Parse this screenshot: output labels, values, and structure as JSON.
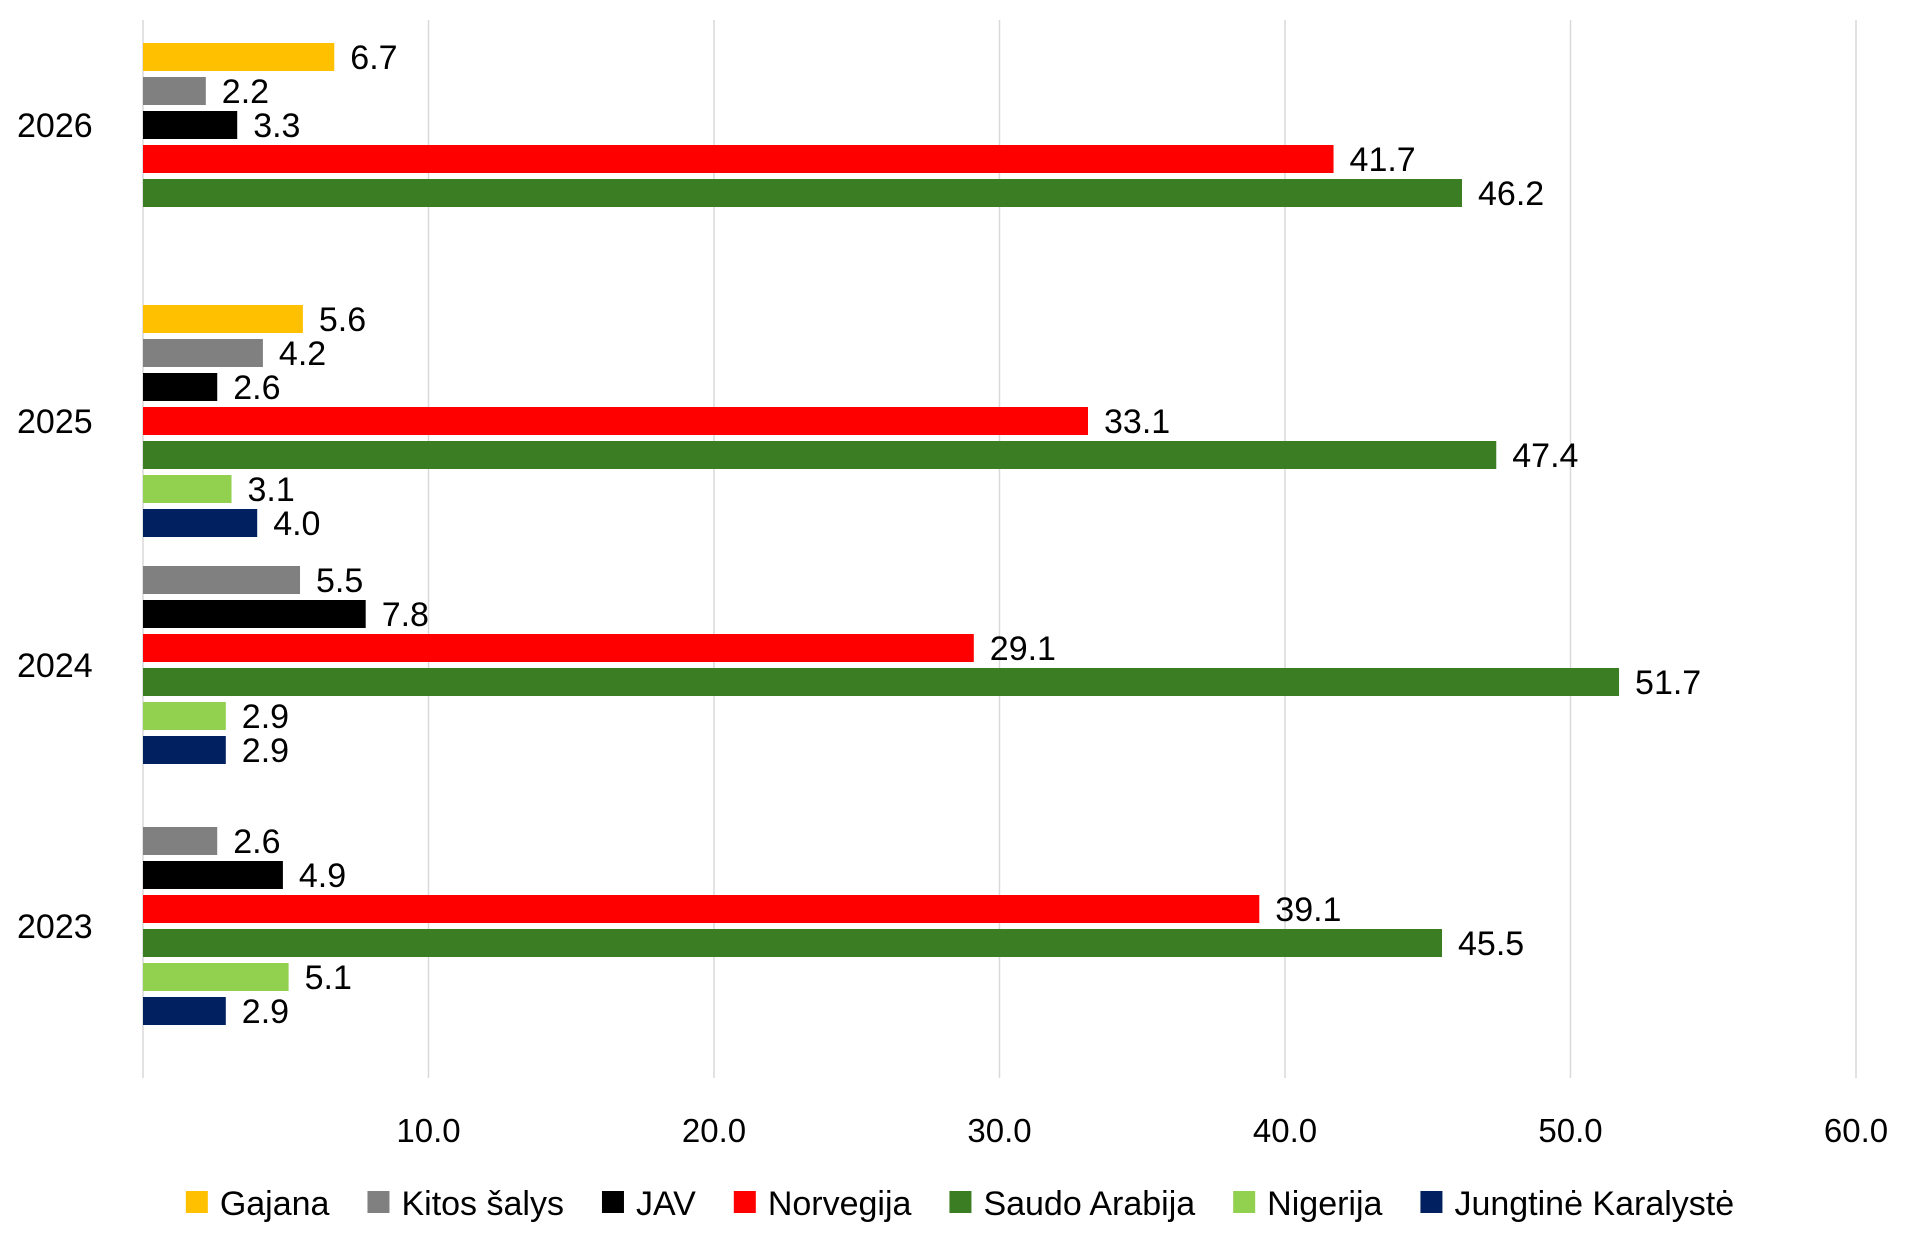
{
  "chart_data": {
    "type": "bar",
    "orientation": "horizontal",
    "title": "",
    "xlabel": "",
    "ylabel": "",
    "xlim": [
      0,
      60
    ],
    "x_ticks": [
      10.0,
      20.0,
      30.0,
      40.0,
      50.0,
      60.0
    ],
    "x_tick_labels": [
      "10.0",
      "20.0",
      "30.0",
      "40.0",
      "50.0",
      "60.0"
    ],
    "grid": "vertical",
    "legend_position": "bottom",
    "categories": [
      "2026",
      "2025",
      "2024",
      "2023"
    ],
    "series": [
      {
        "name": "Gajana",
        "color": "#FFC000",
        "values": [
          6.7,
          5.6,
          null,
          null
        ],
        "labels": [
          "6.7",
          "5.6",
          "",
          ""
        ]
      },
      {
        "name": "Kitos šalys",
        "color": "#808080",
        "values": [
          2.2,
          4.2,
          5.5,
          2.6
        ],
        "labels": [
          "2.2",
          "4.2",
          "5.5",
          "2.6"
        ]
      },
      {
        "name": "JAV",
        "color": "#000000",
        "values": [
          3.3,
          2.6,
          7.8,
          4.9
        ],
        "labels": [
          "3.3",
          "2.6",
          "7.8",
          "4.9"
        ]
      },
      {
        "name": "Norvegija",
        "color": "#FF0000",
        "values": [
          41.7,
          33.1,
          29.1,
          39.1
        ],
        "labels": [
          "41.7",
          "33.1",
          "29.1",
          "39.1"
        ]
      },
      {
        "name": "Saudo Arabija",
        "color": "#3A7D22",
        "values": [
          46.2,
          47.4,
          51.7,
          45.5
        ],
        "labels": [
          "46.2",
          "47.4",
          "51.7",
          "45.5"
        ]
      },
      {
        "name": "Nigerija",
        "color": "#92D050",
        "values": [
          null,
          3.1,
          2.9,
          5.1
        ],
        "labels": [
          "",
          "3.1",
          "2.9",
          "5.1"
        ]
      },
      {
        "name": "Jungtinė Karalystė",
        "color": "#002060",
        "values": [
          null,
          4.0,
          2.9,
          2.9
        ],
        "labels": [
          "",
          "4.0",
          "2.9",
          "2.9"
        ]
      }
    ]
  }
}
